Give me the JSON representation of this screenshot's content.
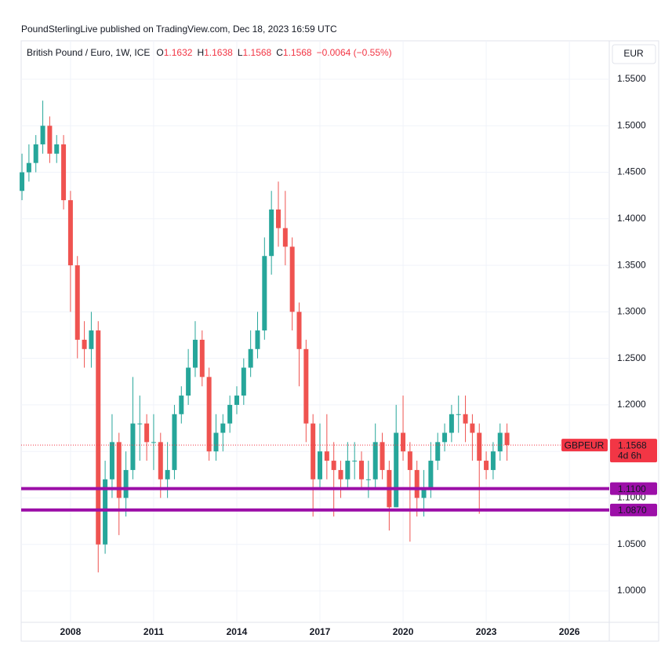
{
  "header": {
    "publisher": "PoundSterlingLive published on TradingView.com, Dec 18, 2023 16:59 UTC",
    "symbol": "British Pound / Euro, 1W, ICE",
    "ohlc": [
      {
        "label": "O",
        "value": "1.1632"
      },
      {
        "label": "H",
        "value": "1.1638"
      },
      {
        "label": "L",
        "value": "1.1568"
      },
      {
        "label": "C",
        "value": "1.1568"
      }
    ],
    "change": "−0.0064 (−0.55%)",
    "currency": "EUR"
  },
  "chart_data": {
    "type": "candlestick",
    "up_color": "#26a69a",
    "down_color": "#ef5350",
    "x": [
      2006.25,
      2006.5,
      2006.75,
      2007,
      2007.25,
      2007.5,
      2007.75,
      2008,
      2008.25,
      2008.5,
      2008.75,
      2009,
      2009.25,
      2009.5,
      2009.75,
      2010,
      2010.25,
      2010.5,
      2010.75,
      2011,
      2011.25,
      2011.5,
      2011.75,
      2012,
      2012.25,
      2012.5,
      2012.75,
      2013,
      2013.25,
      2013.5,
      2013.75,
      2014,
      2014.25,
      2014.5,
      2014.75,
      2015,
      2015.25,
      2015.5,
      2015.75,
      2016,
      2016.25,
      2016.5,
      2016.75,
      2017,
      2017.25,
      2017.5,
      2017.75,
      2018,
      2018.25,
      2018.5,
      2018.75,
      2019,
      2019.25,
      2019.5,
      2019.75,
      2020,
      2020.25,
      2020.5,
      2020.75,
      2021,
      2021.25,
      2021.5,
      2021.75,
      2022,
      2022.25,
      2022.5,
      2022.75,
      2023,
      2023.25,
      2023.5,
      2023.75
    ],
    "open": [
      1.43,
      1.45,
      1.46,
      1.48,
      1.5,
      1.47,
      1.48,
      1.42,
      1.35,
      1.27,
      1.26,
      1.28,
      1.05,
      1.12,
      1.16,
      1.1,
      1.13,
      1.18,
      1.18,
      1.16,
      1.16,
      1.12,
      1.13,
      1.19,
      1.21,
      1.24,
      1.27,
      1.23,
      1.15,
      1.17,
      1.18,
      1.2,
      1.21,
      1.24,
      1.26,
      1.28,
      1.36,
      1.41,
      1.39,
      1.37,
      1.3,
      1.26,
      1.18,
      1.12,
      1.15,
      1.14,
      1.13,
      1.12,
      1.14,
      1.14,
      1.12,
      1.12,
      1.16,
      1.13,
      1.09,
      1.17,
      1.15,
      1.13,
      1.1,
      1.11,
      1.14,
      1.16,
      1.17,
      1.19,
      1.19,
      1.18,
      1.17,
      1.14,
      1.13,
      1.15,
      1.17
    ],
    "high": [
      1.47,
      1.48,
      1.49,
      1.527,
      1.51,
      1.49,
      1.49,
      1.43,
      1.36,
      1.29,
      1.3,
      1.29,
      1.14,
      1.19,
      1.17,
      1.15,
      1.23,
      1.21,
      1.19,
      1.19,
      1.17,
      1.16,
      1.2,
      1.22,
      1.26,
      1.29,
      1.28,
      1.24,
      1.19,
      1.19,
      1.21,
      1.22,
      1.25,
      1.28,
      1.3,
      1.38,
      1.43,
      1.44,
      1.43,
      1.38,
      1.31,
      1.27,
      1.19,
      1.18,
      1.19,
      1.16,
      1.14,
      1.16,
      1.16,
      1.15,
      1.14,
      1.18,
      1.17,
      1.14,
      1.2,
      1.21,
      1.16,
      1.14,
      1.13,
      1.16,
      1.17,
      1.18,
      1.2,
      1.21,
      1.21,
      1.19,
      1.18,
      1.15,
      1.16,
      1.18,
      1.18
    ],
    "low": [
      1.42,
      1.44,
      1.45,
      1.47,
      1.46,
      1.46,
      1.41,
      1.3,
      1.25,
      1.24,
      1.24,
      1.02,
      1.04,
      1.1,
      1.06,
      1.08,
      1.12,
      1.14,
      1.14,
      1.13,
      1.1,
      1.1,
      1.12,
      1.18,
      1.2,
      1.23,
      1.22,
      1.14,
      1.14,
      1.15,
      1.17,
      1.19,
      1.2,
      1.23,
      1.25,
      1.27,
      1.34,
      1.37,
      1.35,
      1.28,
      1.22,
      1.16,
      1.08,
      1.11,
      1.12,
      1.08,
      1.1,
      1.11,
      1.12,
      1.11,
      1.1,
      1.11,
      1.12,
      1.065,
      1.09,
      1.14,
      1.053,
      1.08,
      1.08,
      1.1,
      1.13,
      1.15,
      1.16,
      1.17,
      1.16,
      1.14,
      1.083,
      1.12,
      1.12,
      1.14,
      1.14
    ],
    "close": [
      1.45,
      1.46,
      1.48,
      1.5,
      1.47,
      1.48,
      1.42,
      1.35,
      1.27,
      1.26,
      1.28,
      1.05,
      1.12,
      1.16,
      1.1,
      1.13,
      1.18,
      1.18,
      1.16,
      1.16,
      1.12,
      1.13,
      1.19,
      1.21,
      1.24,
      1.27,
      1.23,
      1.15,
      1.17,
      1.18,
      1.2,
      1.21,
      1.24,
      1.26,
      1.28,
      1.36,
      1.41,
      1.39,
      1.37,
      1.3,
      1.26,
      1.18,
      1.12,
      1.15,
      1.14,
      1.13,
      1.12,
      1.14,
      1.14,
      1.12,
      1.12,
      1.16,
      1.13,
      1.09,
      1.17,
      1.15,
      1.13,
      1.1,
      1.11,
      1.14,
      1.16,
      1.17,
      1.19,
      1.19,
      1.18,
      1.17,
      1.14,
      1.13,
      1.15,
      1.17,
      1.1568
    ],
    "xlim": [
      2006.22,
      2027.44
    ],
    "xticks": [
      2008,
      2011,
      2014,
      2017,
      2020,
      2023,
      2026
    ],
    "ylim": [
      0.9663,
      1.5913
    ],
    "yticks": [
      {
        "value": 1.0,
        "label": "1.0000"
      },
      {
        "value": 1.05,
        "label": "1.0500"
      },
      {
        "value": 1.1,
        "label": "1.1000"
      },
      {
        "value": 1.15,
        "label": "1.1500"
      },
      {
        "value": 1.2,
        "label": "1.2000"
      },
      {
        "value": 1.25,
        "label": "1.2500"
      },
      {
        "value": 1.3,
        "label": "1.3000"
      },
      {
        "value": 1.35,
        "label": "1.3500"
      },
      {
        "value": 1.4,
        "label": "1.4000"
      },
      {
        "value": 1.45,
        "label": "1.4500"
      },
      {
        "value": 1.5,
        "label": "1.5000"
      },
      {
        "value": 1.55,
        "label": "1.5500"
      }
    ],
    "grid": true,
    "levels": [
      {
        "value": 1.11,
        "label": "1.1100",
        "color": "#9c0fa8"
      },
      {
        "value": 1.087,
        "label": "1.0870",
        "color": "#9c0fa8"
      }
    ],
    "last_price": {
      "value": 1.1568,
      "label": "1.1568",
      "symbol": "GBPEUR",
      "countdown": "4d 6h",
      "color": "#f23645"
    }
  }
}
